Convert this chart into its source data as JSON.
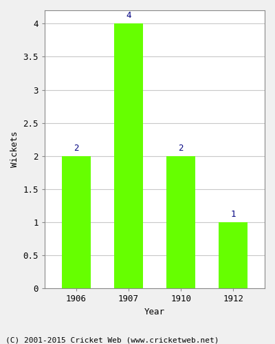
{
  "years": [
    "1906",
    "1907",
    "1910",
    "1912"
  ],
  "values": [
    2,
    4,
    2,
    1
  ],
  "bar_color": "#66ff00",
  "xlabel": "Year",
  "ylabel": "Wickets",
  "ylim": [
    0,
    4.2
  ],
  "yticks": [
    0.0,
    0.5,
    1.0,
    1.5,
    2.0,
    2.5,
    3.0,
    3.5,
    4.0
  ],
  "label_color": "#000080",
  "label_fontsize": 9,
  "axis_fontsize": 9,
  "tick_fontsize": 9,
  "footer_text": "(C) 2001-2015 Cricket Web (www.cricketweb.net)",
  "footer_fontsize": 8,
  "grid_color": "#c8c8c8",
  "fig_bg_color": "#f0f0f0",
  "plot_bg_color": "#ffffff",
  "bar_width": 0.55
}
